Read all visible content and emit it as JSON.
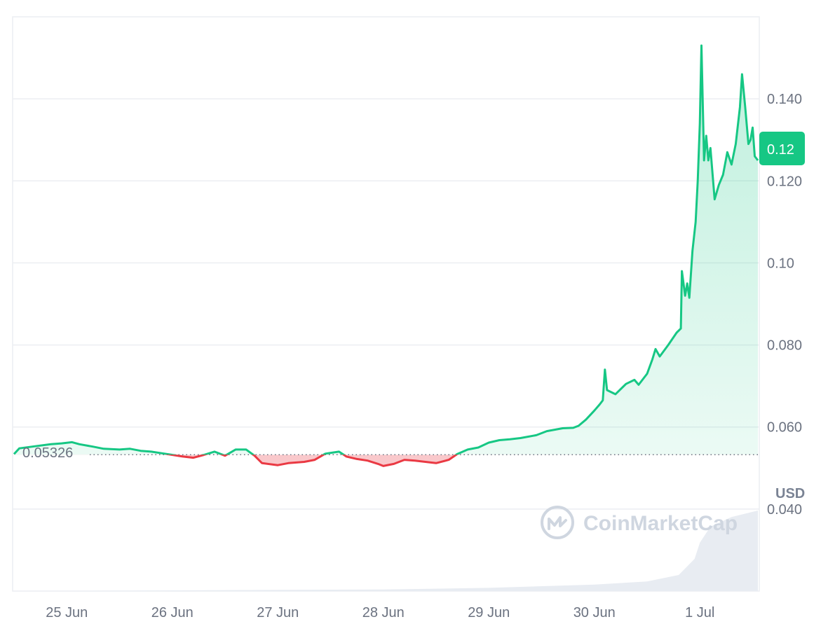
{
  "chart_data": {
    "type": "line",
    "title": "",
    "unit": "USD",
    "reference_price": "0.05326",
    "reference_value": 0.05326,
    "current_price_label": "0.12",
    "current_value": 0.125,
    "ylim": [
      0.02,
      0.16
    ],
    "y_ticks": [
      {
        "label": "0.140",
        "value": 0.14
      },
      {
        "label": "0.120",
        "value": 0.12
      },
      {
        "label": "0.10",
        "value": 0.1
      },
      {
        "label": "0.080",
        "value": 0.08
      },
      {
        "label": "0.060",
        "value": 0.06
      },
      {
        "label": "0.040",
        "value": 0.04
      }
    ],
    "x_range_days": [
      24.5,
      31.55
    ],
    "x_ticks": [
      {
        "label": "25 Jun",
        "day": 25
      },
      {
        "label": "26 Jun",
        "day": 26
      },
      {
        "label": "27 Jun",
        "day": 27
      },
      {
        "label": "28 Jun",
        "day": 28
      },
      {
        "label": "29 Jun",
        "day": 29
      },
      {
        "label": "30 Jun",
        "day": 30
      },
      {
        "label": "1 Jul",
        "day": 31
      }
    ],
    "grid": true,
    "colors": {
      "up": "#16c784",
      "down": "#ea3943",
      "up_fill": "#16c784",
      "down_fill": "#ea3943",
      "grid": "#eceef2",
      "volume": "#e8ecf2"
    },
    "series": [
      {
        "values_note": "",
        "points": [
          [
            24.5,
            0.0534
          ],
          [
            24.55,
            0.0548
          ],
          [
            24.7,
            0.0553
          ],
          [
            24.85,
            0.0558
          ],
          [
            24.95,
            0.056
          ],
          [
            25.05,
            0.0563
          ],
          [
            25.12,
            0.0558
          ],
          [
            25.25,
            0.0552
          ],
          [
            25.35,
            0.0547
          ],
          [
            25.5,
            0.0545
          ],
          [
            25.6,
            0.0547
          ],
          [
            25.7,
            0.0542
          ],
          [
            25.8,
            0.054
          ],
          [
            25.9,
            0.0536
          ],
          [
            26.0,
            0.0532
          ],
          [
            26.1,
            0.0528
          ],
          [
            26.2,
            0.0525
          ],
          [
            26.3,
            0.0532
          ],
          [
            26.4,
            0.054
          ],
          [
            26.5,
            0.053
          ],
          [
            26.6,
            0.0545
          ],
          [
            26.7,
            0.0545
          ],
          [
            26.78,
            0.053
          ],
          [
            26.85,
            0.0512
          ],
          [
            27.0,
            0.0507
          ],
          [
            27.1,
            0.0512
          ],
          [
            27.25,
            0.0515
          ],
          [
            27.35,
            0.052
          ],
          [
            27.45,
            0.0535
          ],
          [
            27.58,
            0.054
          ],
          [
            27.65,
            0.0528
          ],
          [
            27.75,
            0.0522
          ],
          [
            27.85,
            0.0518
          ],
          [
            27.95,
            0.051
          ],
          [
            28.0,
            0.0505
          ],
          [
            28.1,
            0.051
          ],
          [
            28.2,
            0.052
          ],
          [
            28.3,
            0.0518
          ],
          [
            28.4,
            0.0515
          ],
          [
            28.5,
            0.0512
          ],
          [
            28.62,
            0.052
          ],
          [
            28.7,
            0.0534
          ],
          [
            28.8,
            0.0545
          ],
          [
            28.9,
            0.055
          ],
          [
            29.0,
            0.0562
          ],
          [
            29.1,
            0.0568
          ],
          [
            29.2,
            0.057
          ],
          [
            29.3,
            0.0573
          ],
          [
            29.45,
            0.058
          ],
          [
            29.55,
            0.059
          ],
          [
            29.7,
            0.0597
          ],
          [
            29.8,
            0.0598
          ],
          [
            29.85,
            0.0603
          ],
          [
            29.92,
            0.0618
          ],
          [
            30.0,
            0.064
          ],
          [
            30.05,
            0.0655
          ],
          [
            30.08,
            0.0665
          ],
          [
            30.1,
            0.074
          ],
          [
            30.12,
            0.069
          ],
          [
            30.2,
            0.068
          ],
          [
            30.3,
            0.0705
          ],
          [
            30.38,
            0.0715
          ],
          [
            30.42,
            0.0703
          ],
          [
            30.5,
            0.073
          ],
          [
            30.55,
            0.0765
          ],
          [
            30.58,
            0.079
          ],
          [
            30.62,
            0.0772
          ],
          [
            30.7,
            0.08
          ],
          [
            30.78,
            0.083
          ],
          [
            30.82,
            0.084
          ],
          [
            30.83,
            0.098
          ],
          [
            30.86,
            0.092
          ],
          [
            30.88,
            0.095
          ],
          [
            30.9,
            0.0915
          ],
          [
            30.93,
            0.103
          ],
          [
            30.96,
            0.11
          ],
          [
            30.98,
            0.12
          ],
          [
            31.0,
            0.134
          ],
          [
            31.015,
            0.153
          ],
          [
            31.04,
            0.125
          ],
          [
            31.06,
            0.131
          ],
          [
            31.08,
            0.125
          ],
          [
            31.1,
            0.128
          ],
          [
            31.14,
            0.1155
          ],
          [
            31.18,
            0.119
          ],
          [
            31.22,
            0.1215
          ],
          [
            31.26,
            0.127
          ],
          [
            31.3,
            0.124
          ],
          [
            31.34,
            0.129
          ],
          [
            31.38,
            0.138
          ],
          [
            31.4,
            0.146
          ],
          [
            31.43,
            0.138
          ],
          [
            31.46,
            0.129
          ],
          [
            31.48,
            0.13
          ],
          [
            31.5,
            0.133
          ],
          [
            31.52,
            0.126
          ],
          [
            31.55,
            0.125
          ]
        ]
      }
    ],
    "volume_points": [
      [
        24.5,
        0.0
      ],
      [
        28.0,
        0.001
      ],
      [
        29.0,
        0.002
      ],
      [
        30.0,
        0.004
      ],
      [
        30.5,
        0.006
      ],
      [
        30.8,
        0.01
      ],
      [
        30.95,
        0.02
      ],
      [
        31.0,
        0.03
      ],
      [
        31.1,
        0.04
      ],
      [
        31.3,
        0.046
      ],
      [
        31.55,
        0.05
      ]
    ]
  },
  "watermark": {
    "text": "CoinMarketCap",
    "icon": "coinmarketcap-logo-icon"
  }
}
